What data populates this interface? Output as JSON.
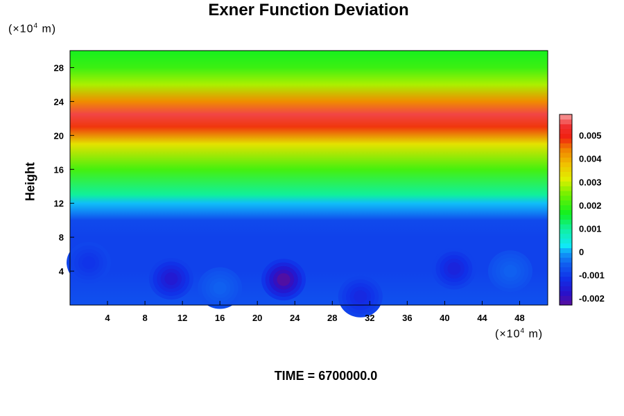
{
  "chart_data": {
    "type": "heatmap",
    "title": "Exner Function Deviation",
    "xlabel": "",
    "ylabel": "Height",
    "x_unit": "(×10⁴ m)",
    "y_unit": "(×10⁴ m)",
    "footer": "TIME = 6700000.0",
    "xlim": [
      0,
      51
    ],
    "ylim": [
      0,
      30
    ],
    "x_ticks": [
      4,
      8,
      12,
      16,
      20,
      24,
      28,
      32,
      36,
      40,
      44,
      48
    ],
    "y_ticks": [
      4,
      8,
      12,
      16,
      20,
      24,
      28
    ],
    "colorbar": {
      "min": -0.0023,
      "max": 0.0059,
      "ticks": [
        -0.002,
        -0.001,
        0,
        0.001,
        0.002,
        0.003,
        0.004,
        0.005
      ],
      "tick_labels": [
        "-0.002",
        "-0.001",
        "0",
        "0.001",
        "0.002",
        "0.003",
        "0.004",
        "0.005"
      ]
    },
    "field_profile": {
      "height": [
        0,
        4,
        8,
        10,
        11,
        12,
        13,
        16,
        19,
        21,
        22.5,
        24,
        26,
        28,
        30
      ],
      "value": [
        -0.0007,
        -0.0009,
        -0.0009,
        -0.0008,
        -0.0002,
        0.0001,
        0.001,
        0.0021,
        0.0033,
        0.0048,
        0.0055,
        0.0043,
        0.0028,
        0.002,
        0.0017
      ]
    },
    "features": [
      {
        "x": 10.8,
        "y": 3.1,
        "value": -0.0016
      },
      {
        "x": 22.8,
        "y": 3.0,
        "value": -0.0022
      },
      {
        "x": 41.0,
        "y": 4.3,
        "value": -0.0014
      },
      {
        "x": 2.0,
        "y": 5.0,
        "value": -0.0011
      },
      {
        "x": 16.0,
        "y": 2.0,
        "value": -0.0005
      },
      {
        "x": 47.0,
        "y": 4.0,
        "value": -0.0005
      },
      {
        "x": 31.0,
        "y": 1.0,
        "value": -0.0013
      }
    ]
  }
}
